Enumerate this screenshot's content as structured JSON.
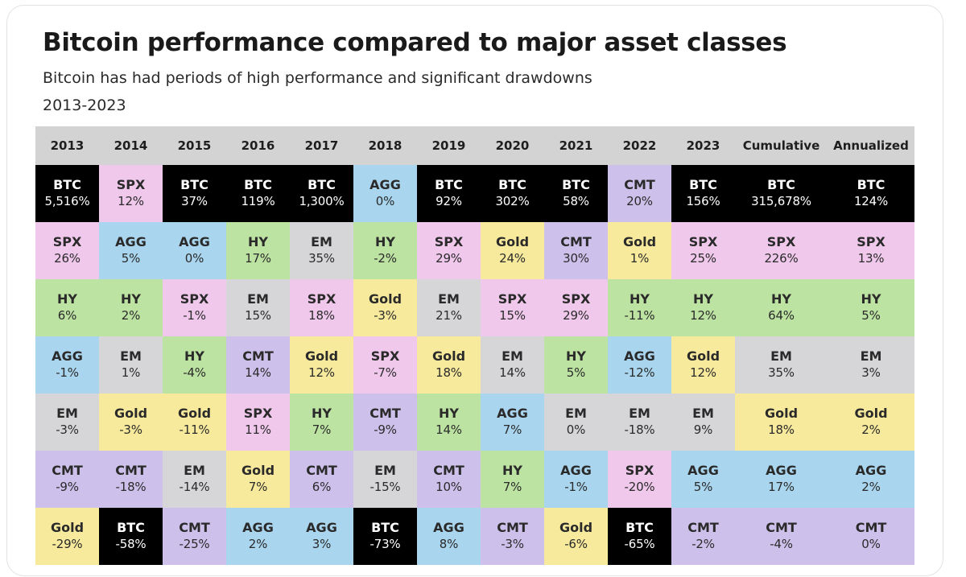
{
  "header": {
    "title": "Bitcoin performance compared to major asset classes",
    "subtitle": "Bitcoin has had periods of high performance and significant drawdowns",
    "years": "2013-2023"
  },
  "colors": {
    "BTC": "#000000",
    "SPX": "#f0c8ec",
    "AGG": "#a9d6ee",
    "HY": "#bde3a2",
    "EM": "#d6d6d9",
    "Gold": "#f7ea9c",
    "CMT": "#cdc0ea",
    "header": "#d3d3d3"
  },
  "chart_data": {
    "type": "table",
    "title": "Bitcoin performance compared to major asset classes",
    "columns": [
      "2013",
      "2014",
      "2015",
      "2016",
      "2017",
      "2018",
      "2019",
      "2020",
      "2021",
      "2022",
      "2023",
      "Cumulative",
      "Annualized"
    ],
    "rows": [
      [
        [
          "BTC",
          "5,516%"
        ],
        [
          "SPX",
          "12%"
        ],
        [
          "BTC",
          "37%"
        ],
        [
          "BTC",
          "119%"
        ],
        [
          "BTC",
          "1,300%"
        ],
        [
          "AGG",
          "0%"
        ],
        [
          "BTC",
          "92%"
        ],
        [
          "BTC",
          "302%"
        ],
        [
          "BTC",
          "58%"
        ],
        [
          "CMT",
          "20%"
        ],
        [
          "BTC",
          "156%"
        ],
        [
          "BTC",
          "315,678%"
        ],
        [
          "BTC",
          "124%"
        ]
      ],
      [
        [
          "SPX",
          "26%"
        ],
        [
          "AGG",
          "5%"
        ],
        [
          "AGG",
          "0%"
        ],
        [
          "HY",
          "17%"
        ],
        [
          "EM",
          "35%"
        ],
        [
          "HY",
          "-2%"
        ],
        [
          "SPX",
          "29%"
        ],
        [
          "Gold",
          "24%"
        ],
        [
          "CMT",
          "30%"
        ],
        [
          "Gold",
          "1%"
        ],
        [
          "SPX",
          "25%"
        ],
        [
          "SPX",
          "226%"
        ],
        [
          "SPX",
          "13%"
        ]
      ],
      [
        [
          "HY",
          "6%"
        ],
        [
          "HY",
          "2%"
        ],
        [
          "SPX",
          "-1%"
        ],
        [
          "EM",
          "15%"
        ],
        [
          "SPX",
          "18%"
        ],
        [
          "Gold",
          "-3%"
        ],
        [
          "EM",
          "21%"
        ],
        [
          "SPX",
          "15%"
        ],
        [
          "SPX",
          "29%"
        ],
        [
          "HY",
          "-11%"
        ],
        [
          "HY",
          "12%"
        ],
        [
          "HY",
          "64%"
        ],
        [
          "HY",
          "5%"
        ]
      ],
      [
        [
          "AGG",
          "-1%"
        ],
        [
          "EM",
          "1%"
        ],
        [
          "HY",
          "-4%"
        ],
        [
          "CMT",
          "14%"
        ],
        [
          "Gold",
          "12%"
        ],
        [
          "SPX",
          "-7%"
        ],
        [
          "Gold",
          "18%"
        ],
        [
          "EM",
          "14%"
        ],
        [
          "HY",
          "5%"
        ],
        [
          "AGG",
          "-12%"
        ],
        [
          "Gold",
          "12%"
        ],
        [
          "EM",
          "35%"
        ],
        [
          "EM",
          "3%"
        ]
      ],
      [
        [
          "EM",
          "-3%"
        ],
        [
          "Gold",
          "-3%"
        ],
        [
          "Gold",
          "-11%"
        ],
        [
          "SPX",
          "11%"
        ],
        [
          "HY",
          "7%"
        ],
        [
          "CMT",
          "-9%"
        ],
        [
          "HY",
          "14%"
        ],
        [
          "AGG",
          "7%"
        ],
        [
          "EM",
          "0%"
        ],
        [
          "EM",
          "-18%"
        ],
        [
          "EM",
          "9%"
        ],
        [
          "Gold",
          "18%"
        ],
        [
          "Gold",
          "2%"
        ]
      ],
      [
        [
          "CMT",
          "-9%"
        ],
        [
          "CMT",
          "-18%"
        ],
        [
          "EM",
          "-14%"
        ],
        [
          "Gold",
          "7%"
        ],
        [
          "CMT",
          "6%"
        ],
        [
          "EM",
          "-15%"
        ],
        [
          "CMT",
          "10%"
        ],
        [
          "HY",
          "7%"
        ],
        [
          "AGG",
          "-1%"
        ],
        [
          "SPX",
          "-20%"
        ],
        [
          "AGG",
          "5%"
        ],
        [
          "AGG",
          "17%"
        ],
        [
          "AGG",
          "2%"
        ]
      ],
      [
        [
          "Gold",
          "-29%"
        ],
        [
          "BTC",
          "-58%"
        ],
        [
          "CMT",
          "-25%"
        ],
        [
          "AGG",
          "2%"
        ],
        [
          "AGG",
          "3%"
        ],
        [
          "BTC",
          "-73%"
        ],
        [
          "AGG",
          "8%"
        ],
        [
          "CMT",
          "-3%"
        ],
        [
          "Gold",
          "-6%"
        ],
        [
          "BTC",
          "-65%"
        ],
        [
          "CMT",
          "-2%"
        ],
        [
          "CMT",
          "-4%"
        ],
        [
          "CMT",
          "0%"
        ]
      ]
    ]
  }
}
